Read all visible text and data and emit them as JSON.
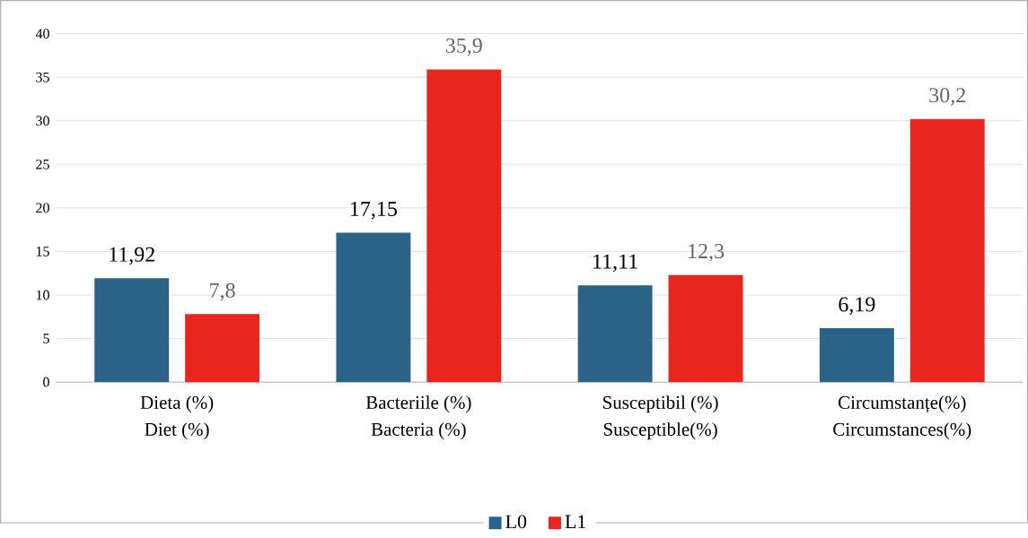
{
  "chart_data": {
    "type": "bar",
    "categories": [
      "Dieta (%)\nDiet (%)",
      "Bacteriile (%)\nBacteria (%)",
      "Susceptibil (%)\nSusceptible(%)",
      "Circumstanțe(%)\nCircumstances(%)"
    ],
    "series": [
      {
        "name": "L0",
        "color": "#2b6288",
        "values": [
          11.92,
          17.15,
          11.11,
          6.19
        ],
        "value_labels": [
          "11,92",
          "17,15",
          "11,11",
          "6,19"
        ]
      },
      {
        "name": "L1",
        "color": "#e8251e",
        "values": [
          7.8,
          35.9,
          12.3,
          30.2
        ],
        "value_labels": [
          "7,8",
          "35,9",
          "12,3",
          "30,2"
        ]
      }
    ],
    "ylim": [
      0,
      40
    ],
    "yticks": [
      0,
      5,
      10,
      15,
      20,
      25,
      30,
      35,
      40
    ],
    "grid": "y",
    "legend": "bottom"
  }
}
